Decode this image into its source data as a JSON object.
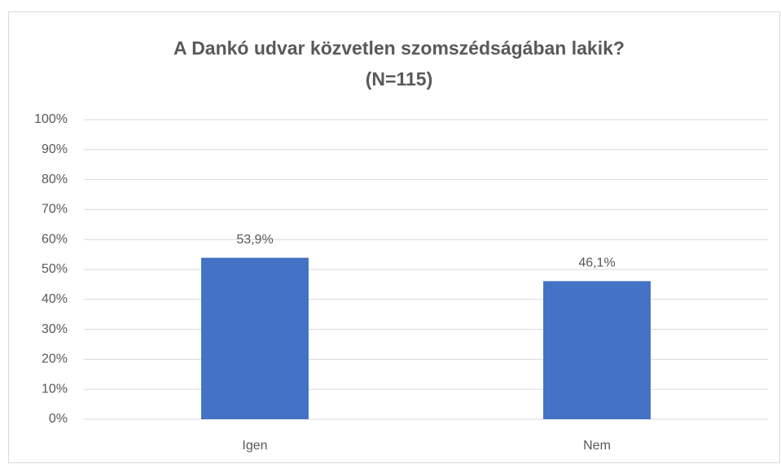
{
  "chart_data": {
    "type": "bar",
    "title": [
      "A Dankó udvar közvetlen szomszédságában lakik?",
      "(N=115)"
    ],
    "categories": [
      "Igen",
      "Nem"
    ],
    "values": [
      53.9,
      46.1
    ],
    "value_labels": [
      "53,9%",
      "46,1%"
    ],
    "color": "#4472c4",
    "ylim": [
      0,
      100
    ],
    "yticks": [
      {
        "value": 0,
        "label": "0%"
      },
      {
        "value": 10,
        "label": "10%"
      },
      {
        "value": 20,
        "label": "20%"
      },
      {
        "value": 30,
        "label": "30%"
      },
      {
        "value": 40,
        "label": "40%"
      },
      {
        "value": 50,
        "label": "50%"
      },
      {
        "value": 60,
        "label": "60%"
      },
      {
        "value": 70,
        "label": "70%"
      },
      {
        "value": 80,
        "label": "80%"
      },
      {
        "value": 90,
        "label": "90%"
      },
      {
        "value": 100,
        "label": "100%"
      }
    ],
    "grid": true
  }
}
